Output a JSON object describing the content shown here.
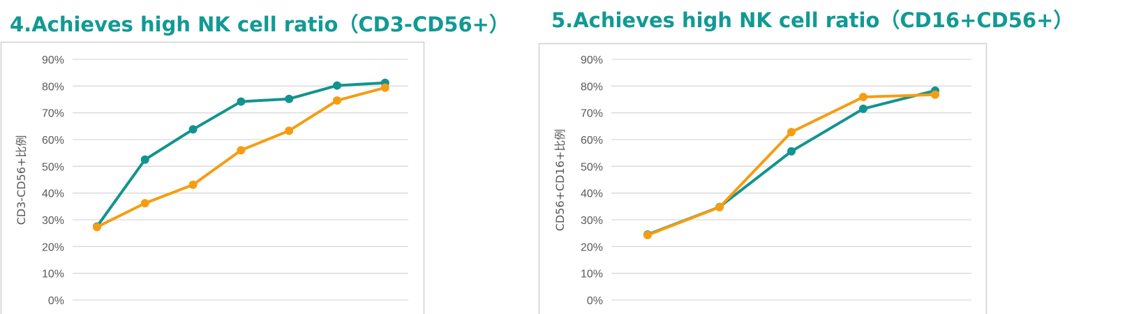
{
  "colors": {
    "title": "#119a94",
    "series_teal": "#11948f",
    "series_orange": "#f59d12",
    "grid": "#d9d9d9",
    "frame": "#d0d0d0",
    "text": "#595959"
  },
  "chart_data": [
    {
      "type": "line",
      "title": "4.Achieves high NK cell ratio（CD3-CD56+）",
      "xlabel": "",
      "ylabel": "CD3-CD56+比例",
      "ylim": [
        0,
        90
      ],
      "yticks": [
        "0%",
        "10%",
        "20%",
        "30%",
        "40%",
        "50%",
        "60%",
        "70%",
        "80%",
        "90%"
      ],
      "grid": true,
      "x": [
        1,
        2,
        3,
        4,
        5,
        6,
        7
      ],
      "series": [
        {
          "color": "#11948f",
          "values": [
            27.5,
            52.5,
            63.8,
            74.2,
            75.2,
            80.2,
            81.2
          ]
        },
        {
          "color": "#f59d12",
          "values": [
            27.3,
            36.2,
            43.1,
            56.0,
            63.3,
            74.6,
            79.4
          ]
        }
      ]
    },
    {
      "type": "line",
      "title": "5.Achieves high NK cell ratio（CD16+CD56+）",
      "xlabel": "",
      "ylabel": "CD56+CD16+比例",
      "ylim": [
        0,
        90
      ],
      "yticks": [
        "0%",
        "10%",
        "20%",
        "30%",
        "40%",
        "50%",
        "60%",
        "70%",
        "80%",
        "90%"
      ],
      "grid": true,
      "x": [
        1,
        2,
        3,
        4,
        5
      ],
      "series": [
        {
          "color": "#11948f",
          "values": [
            24.5,
            34.8,
            55.6,
            71.5,
            78.3
          ]
        },
        {
          "color": "#f59d12",
          "values": [
            24.3,
            34.7,
            62.8,
            75.9,
            76.8
          ]
        }
      ]
    }
  ]
}
